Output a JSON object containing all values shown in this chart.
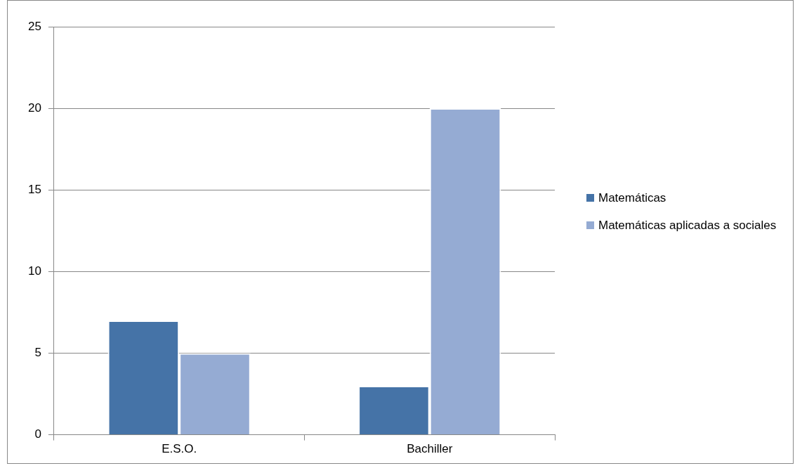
{
  "chart_data": {
    "type": "bar",
    "categories": [
      "E.S.O.",
      "Bachiller"
    ],
    "series": [
      {
        "name": "Matemáticas",
        "color": "#4573a7",
        "values": [
          7,
          3
        ]
      },
      {
        "name": "Matemáticas aplicadas a sociales",
        "color": "#95abd3",
        "values": [
          5,
          20
        ]
      }
    ],
    "ylim": [
      0,
      25
    ],
    "yticks": [
      0,
      5,
      10,
      15,
      20,
      25
    ],
    "grid": "y",
    "legend": "right"
  }
}
